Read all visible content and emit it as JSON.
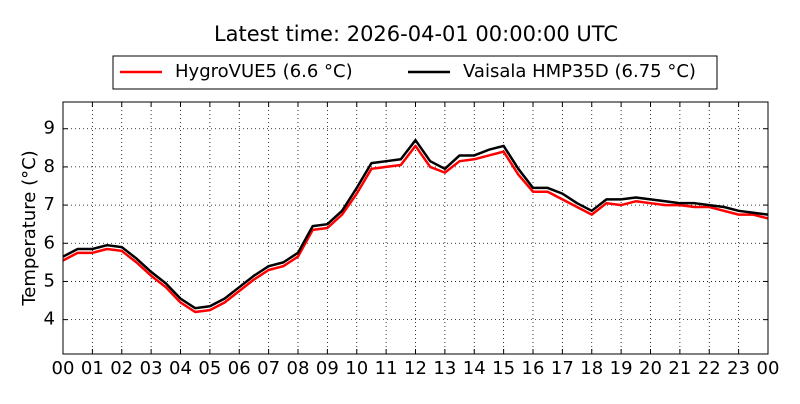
{
  "chart_data": {
    "type": "line",
    "title": "Latest time: 2026-04-01 00:00:00 UTC",
    "y_label": "Temperature (°C)",
    "x": [
      0,
      0.5,
      1,
      1.5,
      2,
      2.5,
      3,
      3.5,
      4,
      4.5,
      5,
      5.5,
      6,
      6.5,
      7,
      7.5,
      8,
      8.5,
      9,
      9.5,
      10,
      10.5,
      11,
      11.5,
      12,
      12.5,
      13,
      13.5,
      14,
      14.5,
      15,
      15.5,
      16,
      16.5,
      17,
      17.5,
      18,
      18.5,
      19,
      19.5,
      20,
      20.5,
      21,
      21.5,
      22,
      22.5,
      23,
      23.5,
      24
    ],
    "series": [
      {
        "name": "HygroVUE5 (6.6 °C)",
        "color": "#ff0000",
        "values": [
          5.55,
          5.75,
          5.75,
          5.85,
          5.8,
          5.5,
          5.15,
          4.85,
          4.45,
          4.2,
          4.25,
          4.45,
          4.75,
          5.05,
          5.3,
          5.4,
          5.65,
          6.35,
          6.4,
          6.75,
          7.3,
          7.95,
          8.0,
          8.05,
          8.55,
          8.0,
          7.85,
          8.15,
          8.2,
          8.3,
          8.4,
          7.8,
          7.35,
          7.35,
          7.15,
          6.95,
          6.75,
          7.05,
          7.0,
          7.1,
          7.05,
          7.0,
          7.0,
          6.95,
          6.95,
          6.85,
          6.75,
          6.75,
          6.65
        ]
      },
      {
        "name": "Vaisala HMP35D (6.75 °C)",
        "color": "#000000",
        "values": [
          5.65,
          5.85,
          5.85,
          5.95,
          5.9,
          5.6,
          5.25,
          4.95,
          4.55,
          4.3,
          4.35,
          4.55,
          4.85,
          5.15,
          5.4,
          5.5,
          5.75,
          6.45,
          6.5,
          6.85,
          7.45,
          8.1,
          8.15,
          8.2,
          8.7,
          8.15,
          7.95,
          8.3,
          8.3,
          8.45,
          8.55,
          7.95,
          7.45,
          7.45,
          7.3,
          7.05,
          6.85,
          7.15,
          7.15,
          7.2,
          7.15,
          7.1,
          7.05,
          7.05,
          7.0,
          6.95,
          6.85,
          6.8,
          6.75
        ]
      }
    ],
    "xlim": [
      0,
      24
    ],
    "xticks": [
      {
        "value": 0,
        "label": "00"
      },
      {
        "value": 1,
        "label": "01"
      },
      {
        "value": 2,
        "label": "02"
      },
      {
        "value": 3,
        "label": "03"
      },
      {
        "value": 4,
        "label": "04"
      },
      {
        "value": 5,
        "label": "05"
      },
      {
        "value": 6,
        "label": "06"
      },
      {
        "value": 7,
        "label": "07"
      },
      {
        "value": 8,
        "label": "08"
      },
      {
        "value": 9,
        "label": "09"
      },
      {
        "value": 10,
        "label": "10"
      },
      {
        "value": 11,
        "label": "11"
      },
      {
        "value": 12,
        "label": "12"
      },
      {
        "value": 13,
        "label": "13"
      },
      {
        "value": 14,
        "label": "14"
      },
      {
        "value": 15,
        "label": "15"
      },
      {
        "value": 16,
        "label": "16"
      },
      {
        "value": 17,
        "label": "17"
      },
      {
        "value": 18,
        "label": "18"
      },
      {
        "value": 19,
        "label": "19"
      },
      {
        "value": 20,
        "label": "20"
      },
      {
        "value": 21,
        "label": "21"
      },
      {
        "value": 22,
        "label": "22"
      },
      {
        "value": 23,
        "label": "23"
      },
      {
        "value": 24,
        "label": "00"
      }
    ],
    "ylim": [
      3.1,
      9.7
    ],
    "yticks": [
      4,
      5,
      6,
      7,
      8,
      9
    ],
    "grid": true
  }
}
